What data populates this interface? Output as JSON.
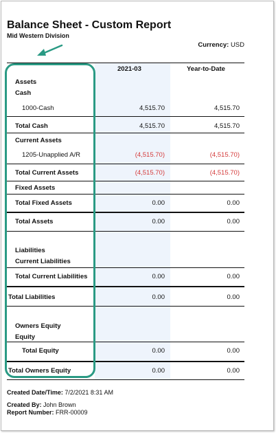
{
  "report": {
    "title": "Balance Sheet - Custom Report",
    "division": "Mid Western Division",
    "currency_label": "Currency:",
    "currency_value": "USD"
  },
  "columns": {
    "period": "2021-03",
    "ytd": "Year-to-Date"
  },
  "rows": {
    "assets": "Assets",
    "cash": "Cash",
    "cash_1000": {
      "label": "1000-Cash",
      "period": "4,515.70",
      "ytd": "4,515.70"
    },
    "total_cash": {
      "label": "Total Cash",
      "period": "4,515.70",
      "ytd": "4,515.70"
    },
    "current_assets": "Current Assets",
    "ar_1205": {
      "label": "1205-Unapplied A/R",
      "period": "(4,515.70)",
      "ytd": "(4,515.70)"
    },
    "total_current_assets": {
      "label": "Total Current Assets",
      "period": "(4,515.70)",
      "ytd": "(4,515.70)"
    },
    "fixed_assets": "Fixed Assets",
    "total_fixed_assets": {
      "label": "Total Fixed Assets",
      "period": "0.00",
      "ytd": "0.00"
    },
    "total_assets": {
      "label": "Total Assets",
      "period": "0.00",
      "ytd": "0.00"
    },
    "liabilities": "Liabilities",
    "current_liabilities": "Current Liabilities",
    "total_current_liabilities": {
      "label": "Total Current Liabilities",
      "period": "0.00",
      "ytd": "0.00"
    },
    "total_liabilities": {
      "label": "Total Liabilities",
      "period": "0.00",
      "ytd": "0.00"
    },
    "owners_equity": "Owners Equity",
    "equity": "Equity",
    "total_equity": {
      "label": "Total Equity",
      "period": "0.00",
      "ytd": "0.00"
    },
    "total_owners_equity": {
      "label": "Total Owners Equity",
      "period": "0.00",
      "ytd": "0.00"
    }
  },
  "footer": {
    "created_datetime_label": "Created Date/Time:",
    "created_datetime_value": "7/2/2021 8:31 AM",
    "created_by_label": "Created By:",
    "created_by_value": "John Brown",
    "report_number_label": "Report Number:",
    "report_number_value": "FRR-00009"
  },
  "colors": {
    "highlight": "#2a9a84",
    "negative": "#d43a3a",
    "column_shade": "#eef4fc"
  }
}
